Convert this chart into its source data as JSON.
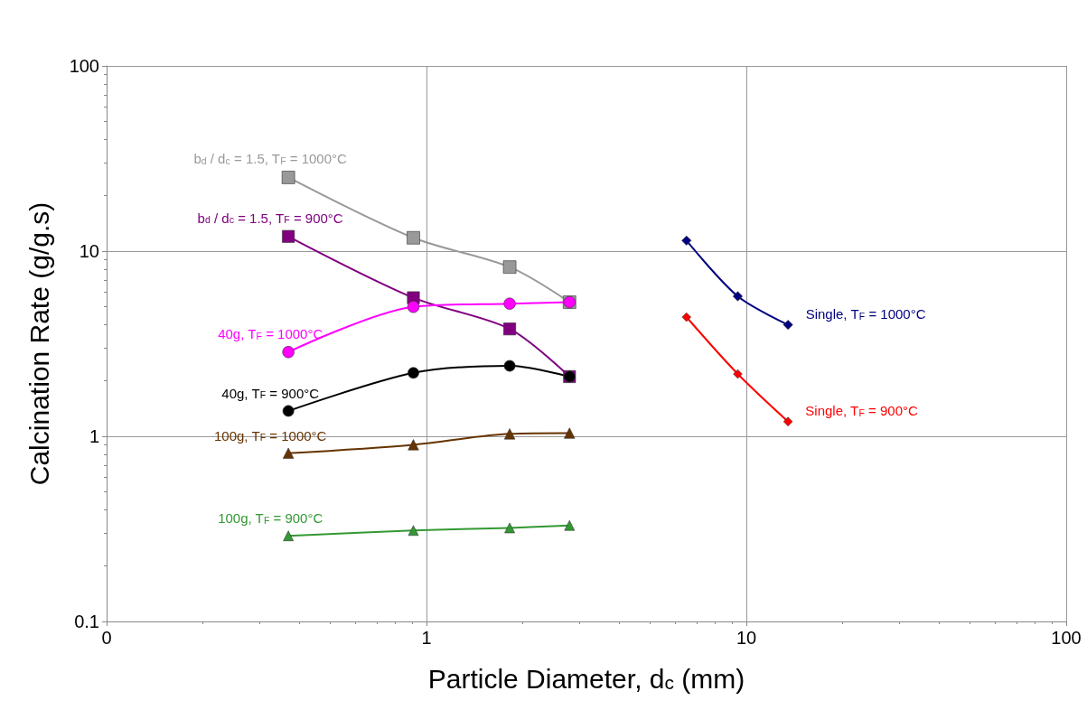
{
  "chart_data": {
    "type": "line",
    "xlabel": "Particle Diameter, d$_{c}$ (mm)",
    "ylabel": "Calcination Rate (g/g.s)",
    "log": "xy",
    "grid": true,
    "legend": false,
    "xlim": [
      0.1,
      100
    ],
    "xticks": [
      {
        "value": 0.1,
        "label": "0"
      },
      1,
      10,
      100
    ],
    "ylim": [
      0.1,
      100
    ],
    "yticks": [
      0.1,
      1,
      10,
      100
    ],
    "line_style": "solid",
    "series": [
      {
        "name": "b$_{d}$ / d$_{c}$ = 1.5, T$_{F}$ = 1000°C",
        "color": "#999999",
        "marker": "square",
        "x": [
          0.37,
          0.91,
          1.82,
          2.8
        ],
        "values": [
          25,
          11.8,
          8.2,
          5.3
        ]
      },
      {
        "name": "b$_{d}$ / d$_{c}$ = 1.5, T$_{F}$ = 900°C",
        "color": "#800080",
        "marker": "square",
        "x": [
          0.37,
          0.91,
          1.82,
          2.8
        ],
        "values": [
          12,
          5.6,
          3.8,
          2.1
        ]
      },
      {
        "name": "40g, T$_{F}$ = 1000°C",
        "color": "#ff00ff",
        "marker": "circle",
        "x": [
          0.37,
          0.91,
          1.82,
          2.8
        ],
        "values": [
          2.85,
          5.0,
          5.2,
          5.3
        ]
      },
      {
        "name": "40g, T$_{F}$ = 900°C",
        "color": "#000000",
        "marker": "circle",
        "x": [
          0.37,
          0.91,
          1.82,
          2.8
        ],
        "values": [
          1.37,
          2.2,
          2.4,
          2.1
        ]
      },
      {
        "name": "100g, T$_{F}$ = 1000°C",
        "color": "#663300",
        "marker": "triangle",
        "x": [
          0.37,
          0.91,
          1.82,
          2.8
        ],
        "values": [
          0.81,
          0.9,
          1.03,
          1.04
        ]
      },
      {
        "name": "100g, T$_{F}$ = 900°C",
        "color": "#339933",
        "marker": "triangle",
        "x": [
          0.37,
          0.91,
          1.82,
          2.8
        ],
        "values": [
          0.29,
          0.31,
          0.32,
          0.33
        ]
      },
      {
        "name": "Single, T$_{F}$ = 1000°C",
        "color": "#000080",
        "marker": "diamond",
        "x": [
          6.5,
          9.4,
          13.5
        ],
        "values": [
          11.4,
          5.7,
          4.0
        ]
      },
      {
        "name": "Single, T$_{F}$ = 900°C",
        "color": "#ff0000",
        "marker": "diamond",
        "x": [
          6.5,
          9.4,
          13.5
        ],
        "values": [
          4.4,
          2.17,
          1.2
        ]
      }
    ]
  }
}
